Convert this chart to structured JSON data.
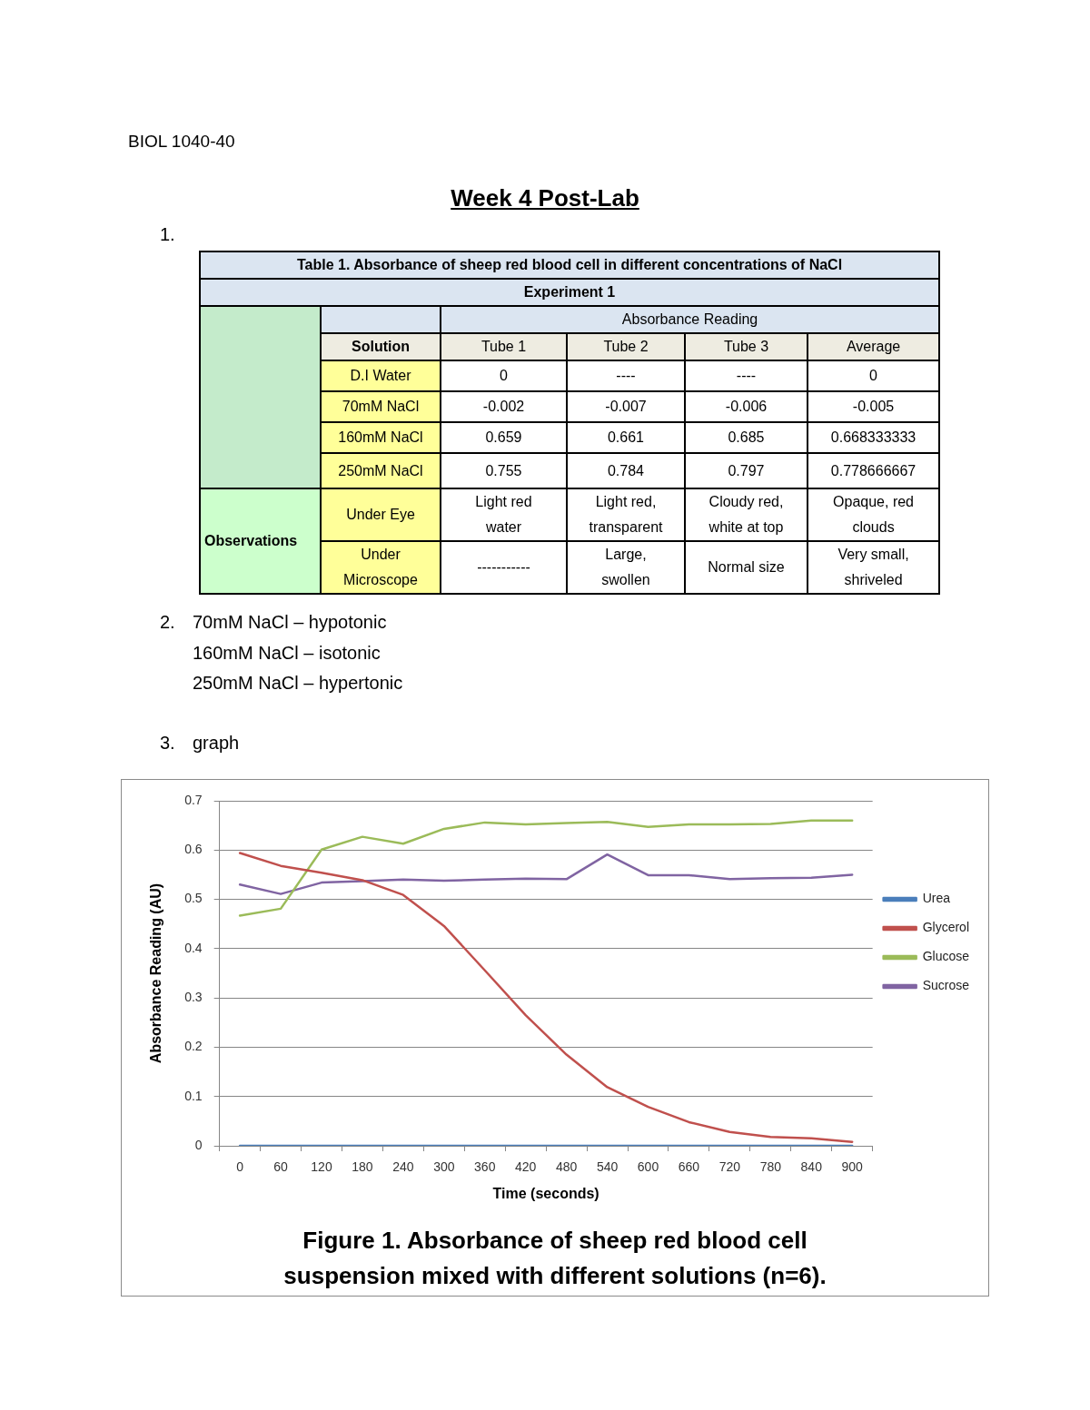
{
  "chart_data": [
    {
      "type": "other",
      "title": "Week 4 Post-Lab",
      "annotations": [
        "BIOL 1040-40",
        "1."
      ]
    },
    {
      "type": "other",
      "title": "Table 1. Absorbance of sheep red blood cell in different concentrations of NaCl",
      "subtitle": "Experiment 1",
      "annotations": [
        "Absorbance Reading",
        "Solution",
        "Tube 1",
        "Tube 2",
        "Tube 3",
        "Average",
        "D.I Water",
        "0",
        "----",
        "----",
        "0",
        "70mM NaCl",
        "-0.002",
        "-0.007",
        "-0.006",
        "-0.005",
        "160mM NaCl",
        "0.659",
        "0.661",
        "0.685",
        "0.668333333",
        "250mM NaCl",
        "0.755",
        "0.784",
        "0.797",
        "0.778666667",
        "Observations",
        "Under Eye",
        "Light red water",
        "Light red, transparent",
        "Cloudy red, white at top",
        "Opaque, red clouds",
        "Under Microscope",
        "-----------",
        "Large, swollen",
        "Normal size",
        "Very small, shriveled"
      ]
    },
    {
      "type": "other",
      "annotations": [
        "2.",
        "70mM NaCl – hypotonic",
        "160mM NaCl – isotonic",
        "250mM NaCl – hypertonic",
        "3.",
        "graph"
      ]
    },
    {
      "type": "line",
      "title": "Figure 1. Absorbance of sheep red blood cell suspension mixed with different solutions (n=6).",
      "xlabel": "Time (seconds)",
      "ylabel": "Absorbance Reading (AU)",
      "categories": [
        "0",
        "60",
        "120",
        "180",
        "240",
        "300",
        "360",
        "420",
        "480",
        "540",
        "600",
        "660",
        "720",
        "780",
        "840",
        "900"
      ],
      "series": [
        {
          "name": "Urea",
          "color": "#4a7ebb",
          "values": [
            0,
            0,
            0,
            0,
            0,
            0,
            0,
            0,
            0,
            0,
            0,
            0,
            0,
            0,
            0,
            0
          ]
        },
        {
          "name": "Glycerol",
          "color": "#c0504d",
          "values": [
            0.594,
            0.568,
            0.554,
            0.539,
            0.509,
            0.446,
            0.356,
            0.265,
            0.185,
            0.119,
            0.079,
            0.048,
            0.028,
            0.018,
            0.015,
            0.008
          ]
        },
        {
          "name": "Glucose",
          "color": "#9bbb59",
          "values": [
            0.467,
            0.481,
            0.601,
            0.627,
            0.613,
            0.643,
            0.656,
            0.652,
            0.655,
            0.657,
            0.647,
            0.652,
            0.652,
            0.653,
            0.66,
            0.66
          ]
        },
        {
          "name": "Sucrose",
          "color": "#8064a2",
          "values": [
            0.53,
            0.511,
            0.534,
            0.537,
            0.54,
            0.538,
            0.54,
            0.542,
            0.541,
            0.591,
            0.549,
            0.549,
            0.541,
            0.543,
            0.544,
            0.55
          ]
        }
      ],
      "ylim": [
        0,
        0.7
      ],
      "yticks": [
        0,
        0.1,
        0.2,
        0.3,
        0.4,
        0.5,
        0.6,
        0.7
      ],
      "grid": "y",
      "legend": "right",
      "marker": "none"
    }
  ]
}
